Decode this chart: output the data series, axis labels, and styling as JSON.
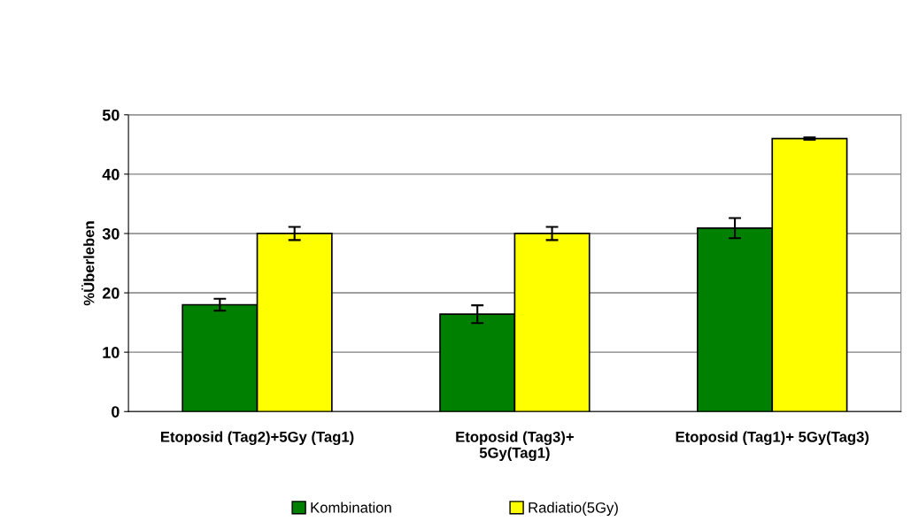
{
  "chart_data": {
    "type": "bar",
    "ylabel": "%Überleben",
    "categories": [
      "Etoposid (Tag2)+5Gy (Tag1)",
      "Etoposid (Tag3)+\n5Gy(Tag1)",
      "Etoposid (Tag1)+ 5Gy(Tag3)"
    ],
    "series": [
      {
        "name": "Kombination",
        "color": "#008000",
        "values": [
          18,
          16.4,
          30.9
        ],
        "errors": [
          1,
          1.5,
          1.7
        ]
      },
      {
        "name": "Radiatio(5Gy)",
        "color": "#ffff00",
        "values": [
          30,
          30,
          46
        ],
        "errors": [
          1.1,
          1.1,
          0.2
        ]
      }
    ],
    "ylim": [
      0,
      50
    ],
    "yticks": [
      0,
      10,
      20,
      30,
      40,
      50
    ],
    "grid": "y",
    "legend": "bottom"
  }
}
